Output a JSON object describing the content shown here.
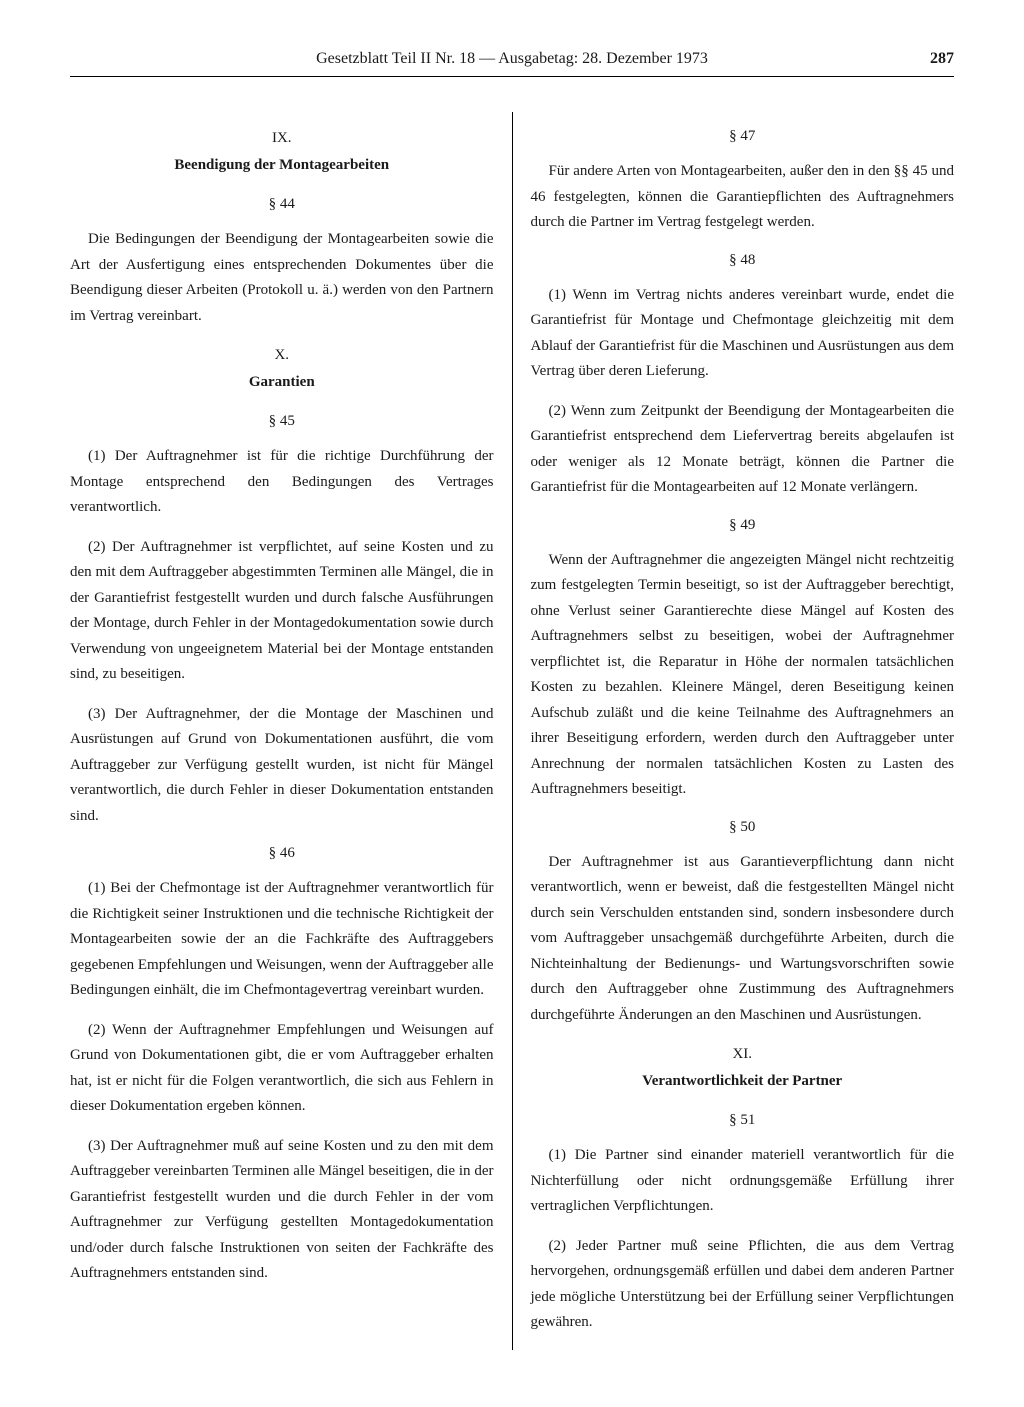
{
  "header": {
    "title": "Gesetzblatt Teil II Nr. 18 — Ausgabetag: 28. Dezember 1973",
    "page_number": "287"
  },
  "left_column": {
    "sections": [
      {
        "roman": "IX.",
        "title": "Beendigung der Montagearbeiten",
        "paragraphs": [
          {
            "num": "§ 44",
            "texts": [
              "Die Bedingungen der Beendigung der Montagearbeiten sowie die Art der Ausfertigung eines entsprechenden Dokumentes über die Beendigung dieser Arbeiten (Protokoll u. ä.) werden von den Partnern im Vertrag vereinbart."
            ]
          }
        ]
      },
      {
        "roman": "X.",
        "title": "Garantien",
        "paragraphs": [
          {
            "num": "§ 45",
            "texts": [
              "(1) Der Auftragnehmer ist für die richtige Durchführung der Montage entsprechend den Bedingungen des Vertrages verantwortlich.",
              "(2) Der Auftragnehmer ist verpflichtet, auf seine Kosten und zu den mit dem Auftraggeber abgestimmten Terminen alle Mängel, die in der Garantiefrist festgestellt wurden und durch falsche Ausführungen der Montage, durch Fehler in der Montagedokumentation sowie durch Verwendung von ungeeignetem Material bei der Montage entstanden sind, zu beseitigen.",
              "(3) Der Auftragnehmer, der die Montage der Maschinen und Ausrüstungen auf Grund von Dokumentationen ausführt, die vom Auftraggeber zur Verfügung gestellt wurden, ist nicht für Mängel verantwortlich, die durch Fehler in dieser Dokumentation entstanden sind."
            ]
          },
          {
            "num": "§ 46",
            "texts": [
              "(1) Bei der Chefmontage ist der Auftragnehmer verantwortlich für die Richtigkeit seiner Instruktionen und die technische Richtigkeit der Montagearbeiten sowie der an die Fachkräfte des Auftraggebers gegebenen Empfehlungen und Weisungen, wenn der Auftraggeber alle Bedingungen einhält, die im Chefmontagevertrag vereinbart wurden.",
              "(2) Wenn der Auftragnehmer Empfehlungen und Weisungen auf Grund von Dokumentationen gibt, die er vom Auftraggeber erhalten hat, ist er nicht für die Folgen verantwortlich, die sich aus Fehlern in dieser Dokumentation ergeben können.",
              "(3) Der Auftragnehmer muß auf seine Kosten und zu den mit dem Auftraggeber vereinbarten Terminen alle Mängel beseitigen, die in der Garantiefrist festgestellt wurden und die durch Fehler in der vom Auftragnehmer zur Verfügung gestellten Montagedokumentation und/oder durch falsche Instruktionen von seiten der Fachkräfte des Auftragnehmers entstanden sind."
            ]
          }
        ]
      }
    ]
  },
  "right_column": {
    "sections": [
      {
        "roman": null,
        "title": null,
        "paragraphs": [
          {
            "num": "§ 47",
            "texts": [
              "Für andere Arten von Montagearbeiten, außer den in den §§ 45 und 46 festgelegten, können die Garantiepflichten des Auftragnehmers durch die Partner im Vertrag festgelegt werden."
            ]
          },
          {
            "num": "§ 48",
            "texts": [
              "(1) Wenn im Vertrag nichts anderes vereinbart wurde, endet die Garantiefrist für Montage und Chefmontage gleichzeitig mit dem Ablauf der Garantiefrist für die Maschinen und Ausrüstungen aus dem Vertrag über deren Lieferung.",
              "(2) Wenn zum Zeitpunkt der Beendigung der Montagearbeiten die Garantiefrist entsprechend dem Liefervertrag bereits abgelaufen ist oder weniger als 12 Monate beträgt, können die Partner die Garantiefrist für die Montagearbeiten auf 12 Monate verlängern."
            ]
          },
          {
            "num": "§ 49",
            "texts": [
              "Wenn der Auftragnehmer die angezeigten Mängel nicht rechtzeitig zum festgelegten Termin beseitigt, so ist der Auftraggeber berechtigt, ohne Verlust seiner Garantierechte diese Mängel auf Kosten des Auftragnehmers selbst zu beseitigen, wobei der Auftragnehmer verpflichtet ist, die Reparatur in Höhe der normalen tatsächlichen Kosten zu bezahlen. Kleinere Mängel, deren Beseitigung keinen Aufschub zuläßt und die keine Teilnahme des Auftragnehmers an ihrer Beseitigung erfordern, werden durch den Auftraggeber unter Anrechnung der normalen tatsächlichen Kosten zu Lasten des Auftragnehmers beseitigt."
            ]
          },
          {
            "num": "§ 50",
            "texts": [
              "Der Auftragnehmer ist aus Garantieverpflichtung dann nicht verantwortlich, wenn er beweist, daß die festgestellten Mängel nicht durch sein Verschulden entstanden sind, sondern insbesondere durch vom Auftraggeber unsachgemäß durchgeführte Arbeiten, durch die Nichteinhaltung der Bedienungs- und Wartungsvorschriften sowie durch den Auftraggeber ohne Zustimmung des Auftragnehmers durchgeführte Änderungen an den Maschinen und Ausrüstungen."
            ]
          }
        ]
      },
      {
        "roman": "XI.",
        "title": "Verantwortlichkeit der Partner",
        "paragraphs": [
          {
            "num": "§ 51",
            "texts": [
              "(1) Die Partner sind einander materiell verantwortlich für die Nichterfüllung oder nicht ordnungsgemäße Erfüllung ihrer vertraglichen Verpflichtungen.",
              "(2) Jeder Partner muß seine Pflichten, die aus dem Vertrag hervorgehen, ordnungsgemäß erfüllen und dabei dem anderen Partner jede mögliche Unterstützung bei der Erfüllung seiner Verpflichtungen gewähren."
            ]
          }
        ]
      }
    ]
  }
}
